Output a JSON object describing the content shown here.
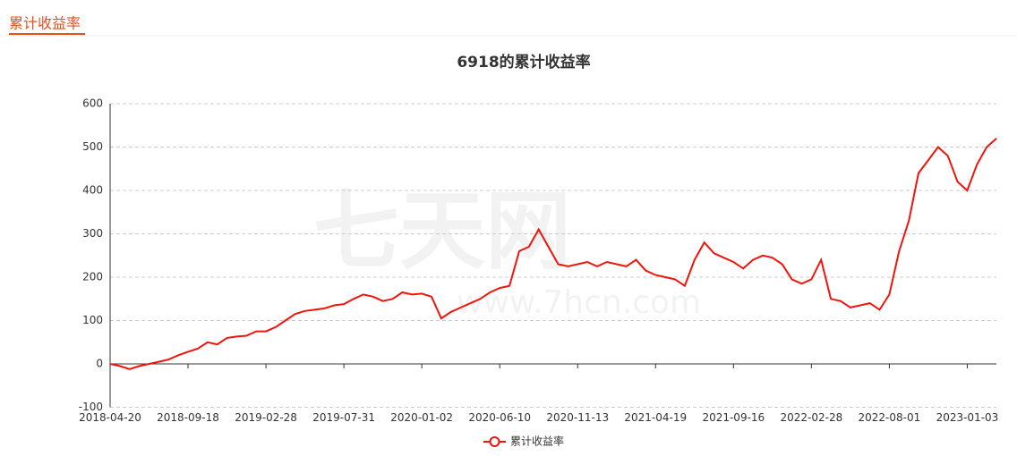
{
  "header": {
    "tab": "累计收益率"
  },
  "watermark": {
    "brand": "七天网",
    "url": "www.7hcn.com"
  },
  "chart_data": {
    "type": "line",
    "title": "6918的累计收益率",
    "categories": [
      "2018-04-20",
      null,
      null,
      null,
      null,
      null,
      null,
      null,
      "2018-09-18",
      null,
      null,
      null,
      null,
      null,
      null,
      null,
      "2019-02-28",
      null,
      null,
      null,
      null,
      null,
      null,
      null,
      "2019-07-31",
      null,
      null,
      null,
      null,
      null,
      null,
      null,
      "2020-01-02",
      null,
      null,
      null,
      null,
      null,
      null,
      null,
      "2020-06-10",
      null,
      null,
      null,
      null,
      null,
      null,
      null,
      "2020-11-13",
      null,
      null,
      null,
      null,
      null,
      null,
      null,
      "2021-04-19",
      null,
      null,
      null,
      null,
      null,
      null,
      null,
      "2021-09-16",
      null,
      null,
      null,
      null,
      null,
      null,
      null,
      "2022-02-28",
      null,
      null,
      null,
      null,
      null,
      null,
      null,
      "2022-08-01",
      null,
      null,
      null,
      null,
      null,
      null,
      null,
      "2023-01-03",
      null,
      null,
      null
    ],
    "series": [
      {
        "name": "累计收益率",
        "color": "#f0140a",
        "values": [
          0,
          -5,
          -12,
          -5,
          0,
          5,
          10,
          20,
          28,
          35,
          50,
          45,
          60,
          63,
          65,
          75,
          75,
          85,
          100,
          115,
          122,
          125,
          128,
          135,
          138,
          150,
          160,
          155,
          145,
          150,
          165,
          160,
          162,
          155,
          105,
          120,
          130,
          140,
          150,
          165,
          175,
          180,
          260,
          270,
          310,
          270,
          230,
          225,
          230,
          235,
          225,
          235,
          230,
          225,
          240,
          215,
          205,
          200,
          195,
          180,
          240,
          280,
          255,
          245,
          235,
          220,
          240,
          250,
          245,
          230,
          195,
          185,
          195,
          240,
          150,
          145,
          130,
          135,
          140,
          125,
          160,
          260,
          330,
          440,
          470,
          500,
          480,
          420,
          400,
          460,
          500,
          520
        ]
      }
    ],
    "ylim": [
      -100,
      600
    ],
    "yticks": [
      -100,
      0,
      100,
      200,
      300,
      400,
      500,
      600
    ],
    "grid": true,
    "legend": "bottom"
  }
}
